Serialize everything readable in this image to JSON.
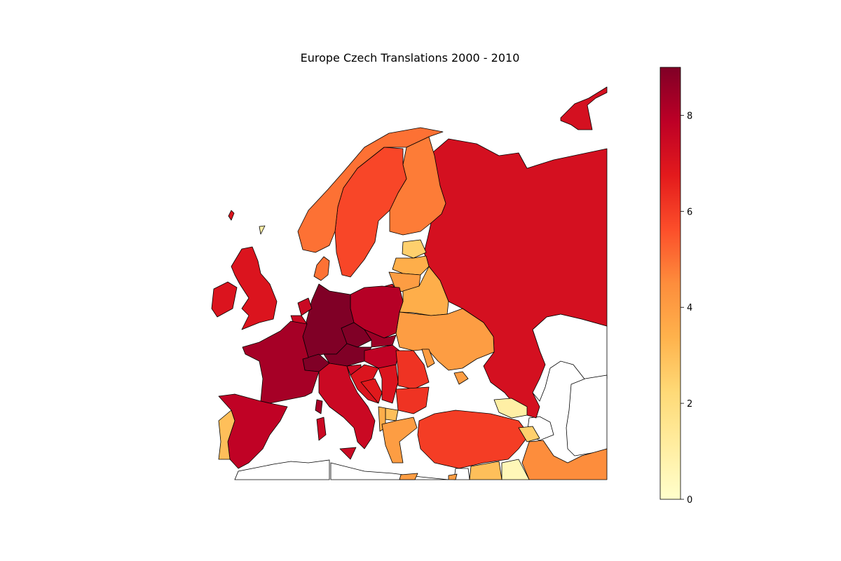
{
  "title": "Europe Czech Translations 2000 - 2010",
  "colorbar": {
    "min": 0,
    "max": 9,
    "ticks": [
      "0",
      "2",
      "4",
      "6",
      "8"
    ],
    "colormap_stops": [
      "#ffffcc",
      "#ffeda0",
      "#fed976",
      "#feb24c",
      "#fd8d3c",
      "#fc4e2a",
      "#e31a1c",
      "#bd0026",
      "#800026"
    ]
  },
  "chart_data": {
    "type": "choropleth",
    "title": "Europe Czech Translations 2000 - 2010",
    "value_range": [
      0,
      9
    ],
    "colormap": "YlOrRd",
    "regions": [
      {
        "name": "Russia",
        "value": 7.2
      },
      {
        "name": "Germany",
        "value": 9
      },
      {
        "name": "Czech Republic",
        "value": 9
      },
      {
        "name": "Austria",
        "value": 9
      },
      {
        "name": "Switzerland",
        "value": 9
      },
      {
        "name": "Slovakia",
        "value": 8.5
      },
      {
        "name": "Poland",
        "value": 8
      },
      {
        "name": "France",
        "value": 8.3
      },
      {
        "name": "Spain",
        "value": 7.8
      },
      {
        "name": "Italy",
        "value": 7.5
      },
      {
        "name": "Hungary",
        "value": 7.8
      },
      {
        "name": "Slovenia",
        "value": 7.5
      },
      {
        "name": "Croatia",
        "value": 7
      },
      {
        "name": "Serbia",
        "value": 7
      },
      {
        "name": "Bosnia and Herzegovina",
        "value": 6.8
      },
      {
        "name": "Netherlands",
        "value": 7.5
      },
      {
        "name": "Belgium",
        "value": 7.5
      },
      {
        "name": "United Kingdom",
        "value": 7
      },
      {
        "name": "Ireland",
        "value": 7
      },
      {
        "name": "Iceland",
        "value": 7
      },
      {
        "name": "Norway",
        "value": 5
      },
      {
        "name": "Sweden",
        "value": 5.8
      },
      {
        "name": "Finland",
        "value": 4.8
      },
      {
        "name": "Denmark",
        "value": 5
      },
      {
        "name": "Romania",
        "value": 6.2
      },
      {
        "name": "Bulgaria",
        "value": 6.2
      },
      {
        "name": "Turkey",
        "value": 6
      },
      {
        "name": "Ukraine",
        "value": 4
      },
      {
        "name": "Belarus",
        "value": 3.5
      },
      {
        "name": "Lithuania",
        "value": 4
      },
      {
        "name": "Latvia",
        "value": 3.5
      },
      {
        "name": "Estonia",
        "value": 2.5
      },
      {
        "name": "Portugal",
        "value": 3
      },
      {
        "name": "Greece",
        "value": 4
      },
      {
        "name": "Albania",
        "value": 3.5
      },
      {
        "name": "North Macedonia",
        "value": 3
      },
      {
        "name": "Georgia",
        "value": 1
      },
      {
        "name": "Armenia",
        "value": 2.5
      },
      {
        "name": "Iran",
        "value": 4.5
      },
      {
        "name": "Syria",
        "value": 3
      },
      {
        "name": "Iraq",
        "value": 0.5
      },
      {
        "name": "Moldova",
        "value": 4
      },
      {
        "name": "Faroe Islands",
        "value": 1
      },
      {
        "name": "Cyprus",
        "value": 4
      }
    ]
  }
}
